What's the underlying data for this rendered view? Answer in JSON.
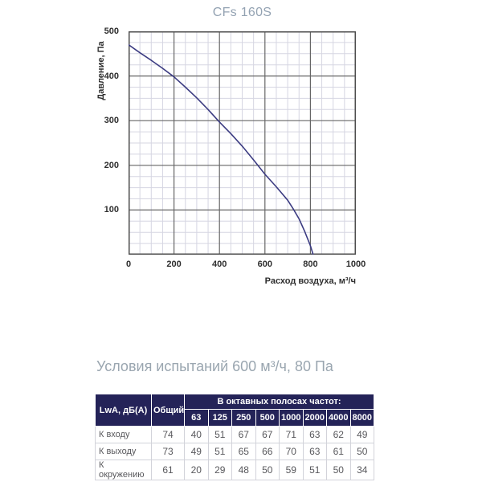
{
  "subtitle": "Условия испытаний 600 м³/ч, 80 Па",
  "chart_data": {
    "type": "line",
    "title": "CFs 160S",
    "xlabel": "Расход воздуха, м³/ч",
    "ylabel": "Давление, Па",
    "xlim": [
      0,
      1000
    ],
    "ylim": [
      0,
      500
    ],
    "x_ticks": [
      0,
      200,
      400,
      600,
      800,
      1000
    ],
    "y_ticks": [
      500,
      400,
      300,
      200,
      100
    ],
    "minor_step_x": 50,
    "minor_step_y": 25,
    "grid": true,
    "legend": "none",
    "colors": {
      "curve": "#3c3c82",
      "major_grid": "#666666",
      "minor_grid": "#d6d6e2",
      "border": "#4d4d4d"
    },
    "series": [
      {
        "name": "fan-performance-curve",
        "points": [
          [
            0,
            470
          ],
          [
            50,
            452
          ],
          [
            100,
            435
          ],
          [
            150,
            417
          ],
          [
            200,
            398
          ],
          [
            250,
            375
          ],
          [
            300,
            351
          ],
          [
            350,
            325
          ],
          [
            400,
            297
          ],
          [
            450,
            271
          ],
          [
            500,
            243
          ],
          [
            550,
            212
          ],
          [
            600,
            180
          ],
          [
            650,
            152
          ],
          [
            700,
            122
          ],
          [
            725,
            102
          ],
          [
            750,
            80
          ],
          [
            775,
            52
          ],
          [
            800,
            20
          ],
          [
            812,
            0
          ]
        ]
      }
    ]
  },
  "table": {
    "corner_header": "LwA, дБ(А)",
    "total_header": "Общий",
    "band_header": "В октавных полосах частот:",
    "frequencies": [
      "63",
      "125",
      "250",
      "500",
      "1000",
      "2000",
      "4000",
      "8000"
    ],
    "rows": [
      {
        "label": "К входу",
        "total": "74",
        "values": [
          "40",
          "51",
          "67",
          "67",
          "71",
          "63",
          "62",
          "49"
        ]
      },
      {
        "label": "К выходу",
        "total": "73",
        "values": [
          "49",
          "51",
          "65",
          "66",
          "70",
          "63",
          "61",
          "50"
        ]
      },
      {
        "label": "К окружению",
        "total": "61",
        "values": [
          "20",
          "29",
          "48",
          "50",
          "59",
          "51",
          "50",
          "34"
        ]
      }
    ],
    "header_bg": "#242358",
    "header_text_color": "#ffffff"
  }
}
